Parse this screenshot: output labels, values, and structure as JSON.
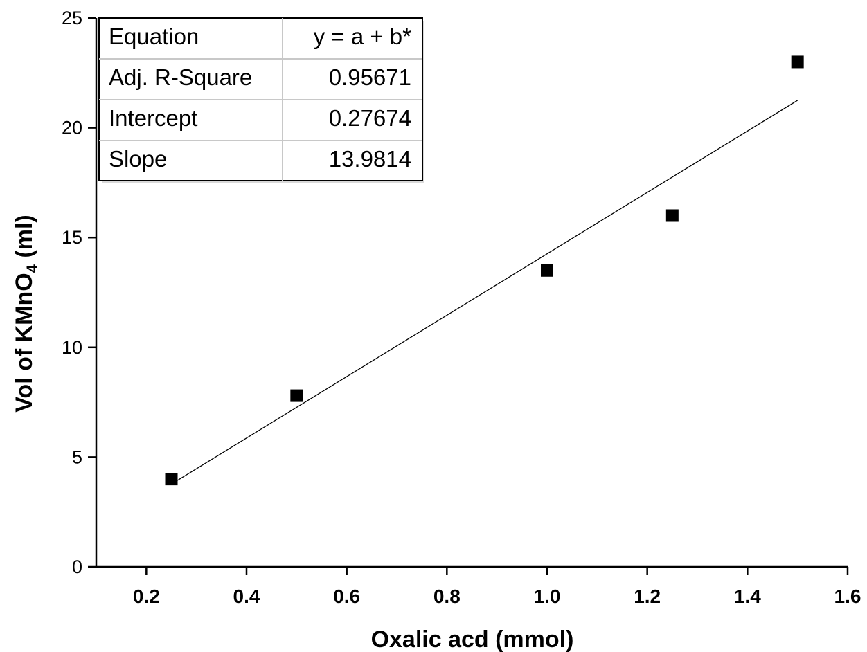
{
  "chart_data": {
    "type": "scatter",
    "xlabel": "Oxalic acd (mmol)",
    "ylabel": {
      "prefix": "Vol of KMnO",
      "subscript": "4",
      "suffix": " (ml)"
    },
    "xlim": [
      0.1,
      1.6
    ],
    "ylim": [
      0,
      25
    ],
    "x_ticks": [
      "0.2",
      "0.4",
      "0.6",
      "0.8",
      "1.0",
      "1.2",
      "1.4",
      "1.6"
    ],
    "y_ticks": [
      "0",
      "5",
      "10",
      "15",
      "20",
      "25"
    ],
    "grid": false,
    "series": [
      {
        "x": [
          0.25,
          0.5,
          1.0,
          1.25,
          1.5
        ],
        "y": [
          4.0,
          7.8,
          13.5,
          16.0,
          23.0
        ],
        "marker": "square",
        "color": "#000000"
      }
    ],
    "fit_line": {
      "intercept": 0.27674,
      "slope": 13.9814,
      "x_range": [
        0.25,
        1.5
      ],
      "color": "#000000"
    },
    "fit_table": {
      "rows": [
        {
          "label": "Equation",
          "value": "y = a + b*"
        },
        {
          "label": "Adj. R-Square",
          "value": "0.95671"
        },
        {
          "label": "Intercept",
          "value": "0.27674"
        },
        {
          "label": "Slope",
          "value": "13.9814"
        }
      ]
    }
  }
}
